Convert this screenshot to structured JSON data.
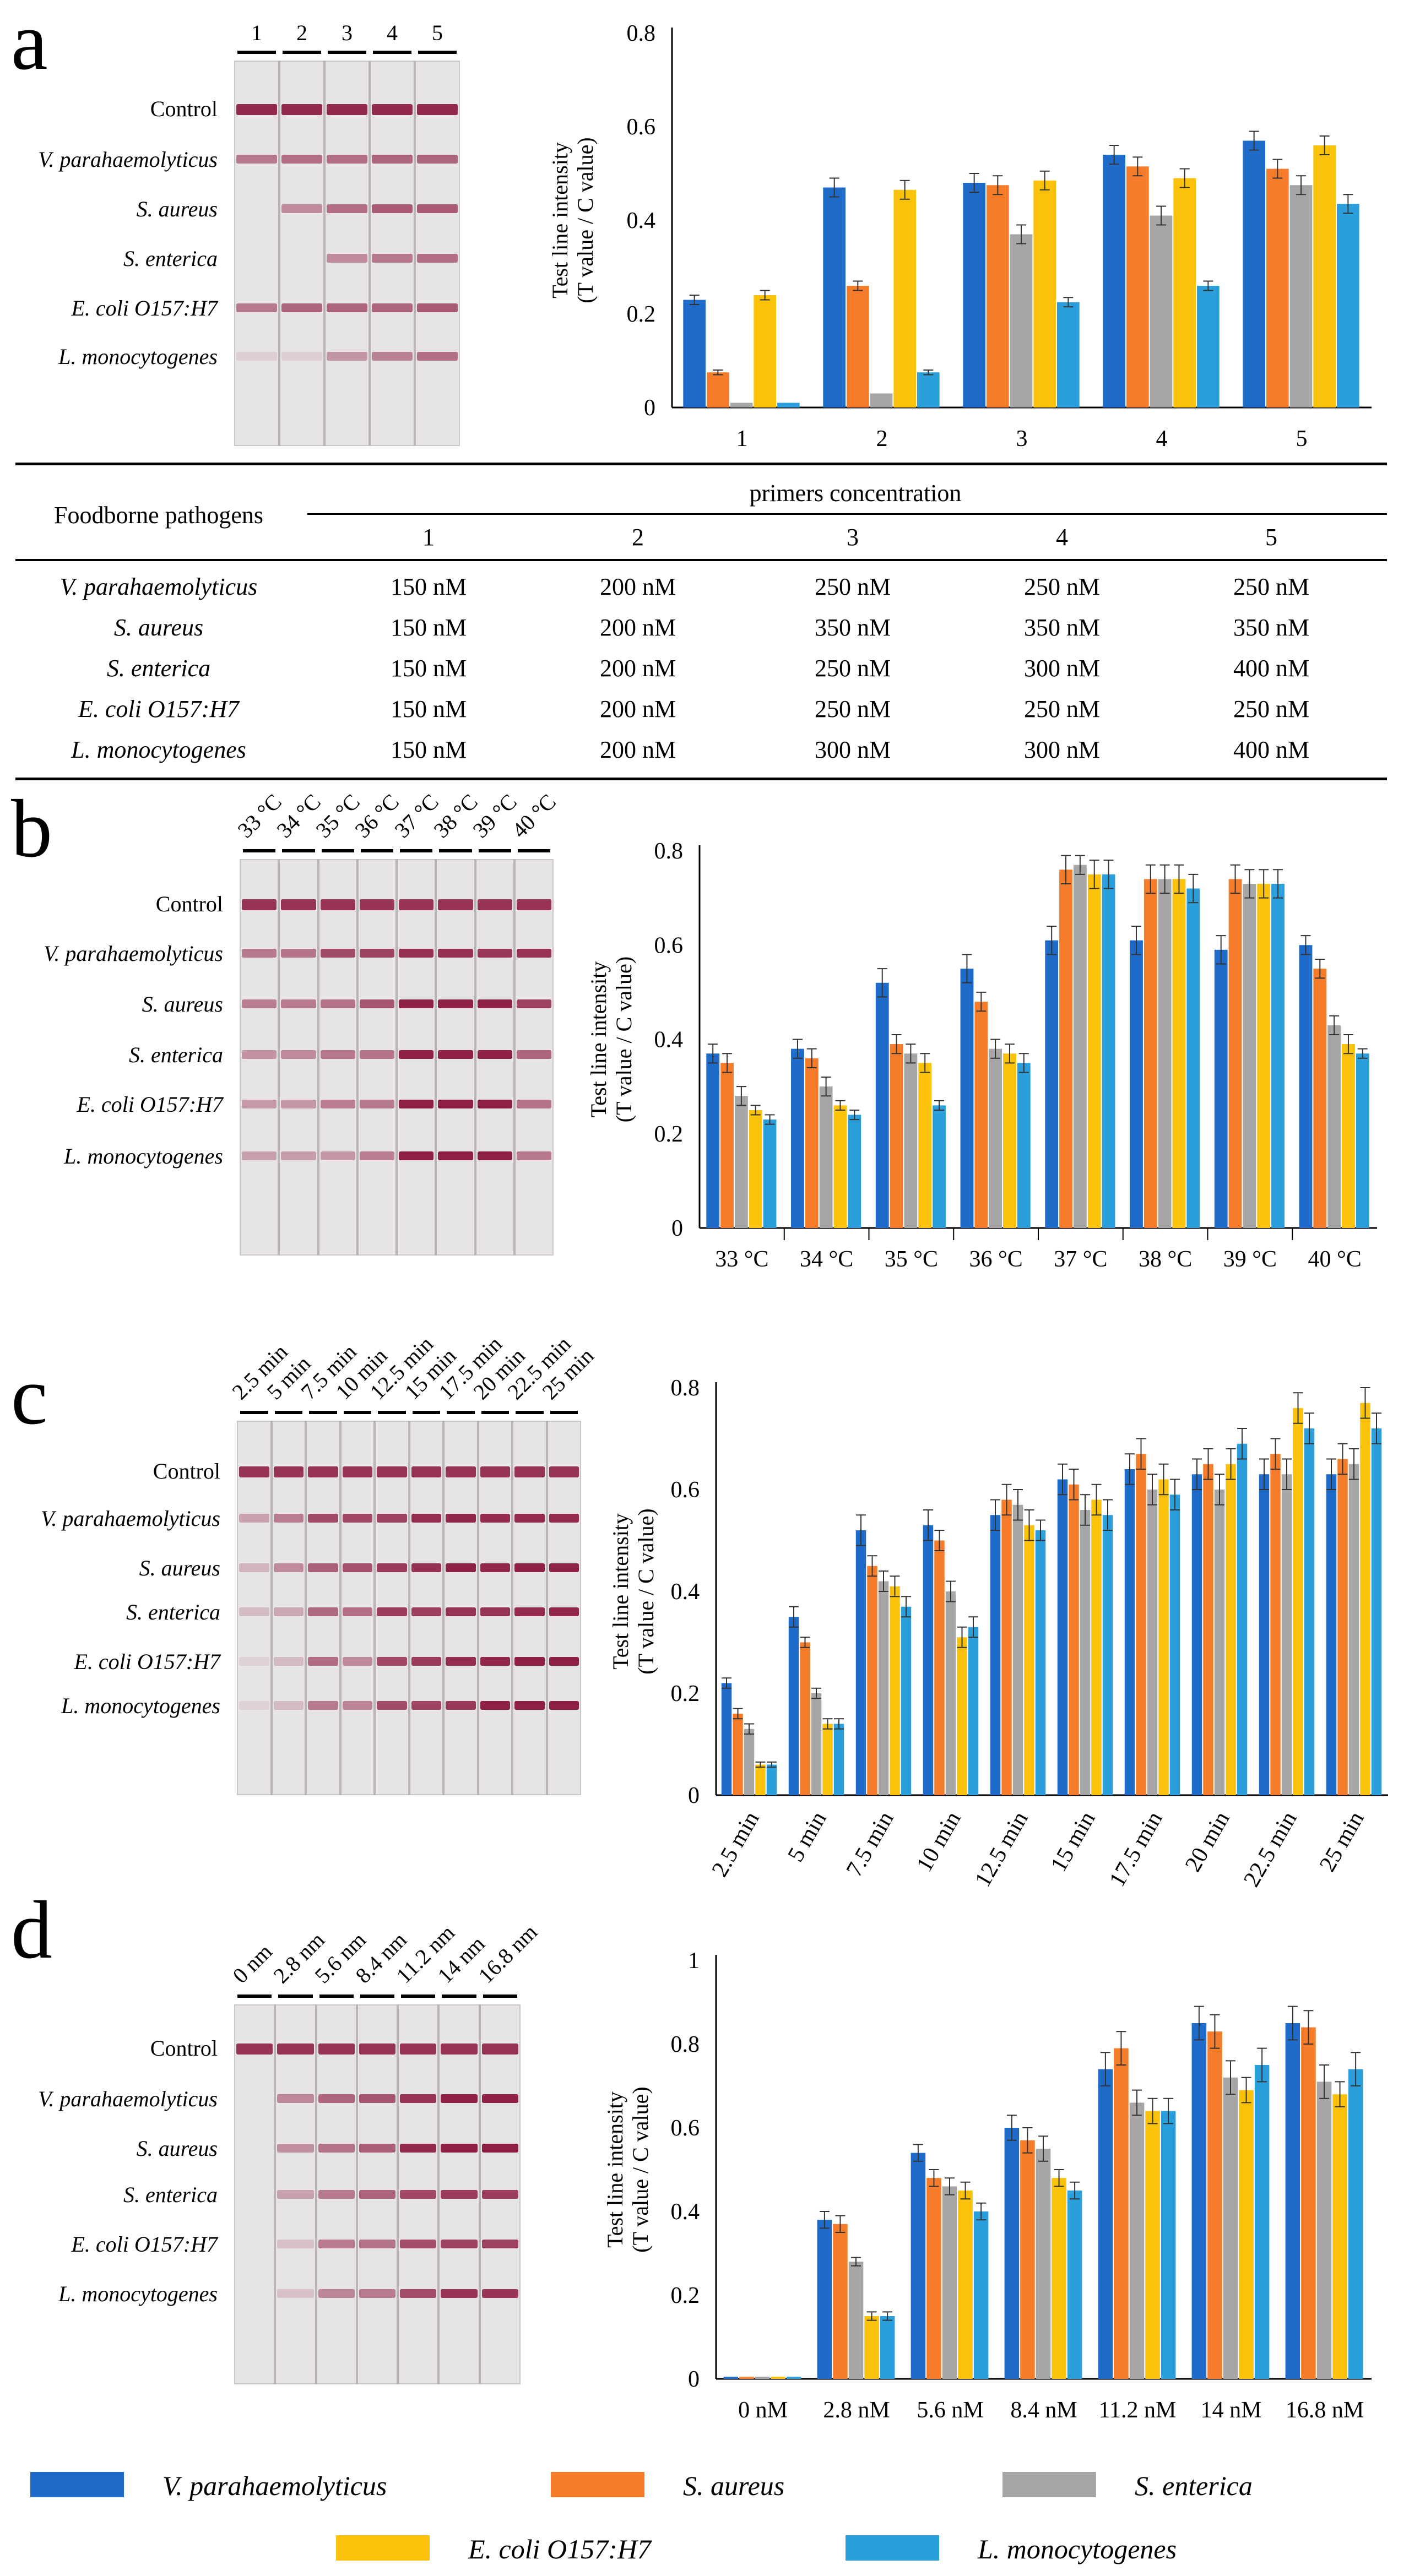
{
  "colors": {
    "series": [
      "#1f6bc9",
      "#f47c2a",
      "#a6a6a6",
      "#fbc20c",
      "#2a9fdc"
    ],
    "strip_bg": "#e7e4e6",
    "band": "#8e1f45"
  },
  "legend": [
    "V. parahaemolyticus",
    "S. aureus",
    "S. enterica",
    "E. coli O157:H7",
    "L. monocytogenes"
  ],
  "strip_rows": [
    "Control",
    "V. parahaemolyticus",
    "S. aureus",
    "S. enterica",
    "E. coli O157:H7",
    "L. monocytogenes"
  ],
  "panels": {
    "a": {
      "letter": "a",
      "strip_rows_a": [
        "Control",
        "V. parahaemolyticus",
        "S. aureus",
        "S. enterica",
        "E. coli O157:H7",
        "L. monocytogenes"
      ],
      "lanes": [
        "1",
        "2",
        "3",
        "4",
        "5"
      ],
      "table": {
        "row_header": "Foodborne pathogens",
        "col_header": "primers concentration",
        "cols": [
          "1",
          "2",
          "3",
          "4",
          "5"
        ],
        "rows": [
          {
            "name": "V. parahaemolyticus",
            "values": [
              "150 nM",
              "200 nM",
              "250 nM",
              "250 nM",
              "250 nM"
            ]
          },
          {
            "name": "S. aureus",
            "values": [
              "150 nM",
              "200 nM",
              "350 nM",
              "350 nM",
              "350 nM"
            ]
          },
          {
            "name": "S. enterica",
            "values": [
              "150 nM",
              "200 nM",
              "250 nM",
              "300 nM",
              "400 nM"
            ]
          },
          {
            "name": "E. coli O157:H7",
            "values": [
              "150 nM",
              "200 nM",
              "250 nM",
              "250 nM",
              "250 nM"
            ]
          },
          {
            "name": "L. monocytogenes",
            "values": [
              "150 nM",
              "200 nM",
              "300 nM",
              "300 nM",
              "400 nM"
            ]
          }
        ]
      }
    },
    "b": {
      "letter": "b",
      "lanes": [
        "33 °C",
        "34 °C",
        "35 °C",
        "36 °C",
        "37 °C",
        "38 °C",
        "39 °C",
        "40 °C"
      ]
    },
    "c": {
      "letter": "c",
      "lanes": [
        "2.5 min",
        "5 min",
        "7.5 min",
        "10 min",
        "12.5 min",
        "15 min",
        "17.5 min",
        "20 min",
        "22.5 min",
        "25 min"
      ]
    },
    "d": {
      "letter": "d",
      "lanes": [
        "0 nm",
        "2.8 nm",
        "5.6 nm",
        "8.4 nm",
        "11.2 nm",
        "14 nm",
        "16.8 nm"
      ]
    }
  },
  "chart_data": [
    {
      "type": "bar",
      "categories": [
        "1",
        "2",
        "3",
        "4",
        "5"
      ],
      "ylabel_line1": "Test line intensity",
      "ylabel_line2": "(T value / C value)",
      "ylim": [
        0,
        0.8
      ],
      "yticks": [
        "0",
        "0.2",
        "0.4",
        "0.6",
        "0.8"
      ],
      "series": [
        {
          "name": "V. parahaemolyticus",
          "values": [
            0.23,
            0.47,
            0.48,
            0.54,
            0.57
          ],
          "errors": [
            0.01,
            0.02,
            0.02,
            0.02,
            0.02
          ]
        },
        {
          "name": "S. aureus",
          "values": [
            0.075,
            0.26,
            0.475,
            0.515,
            0.51
          ],
          "errors": [
            0.005,
            0.01,
            0.02,
            0.02,
            0.02
          ]
        },
        {
          "name": "S. enterica",
          "values": [
            0.01,
            0.03,
            0.37,
            0.41,
            0.475
          ],
          "errors": [
            0.002,
            0.003,
            0.02,
            0.02,
            0.02
          ]
        },
        {
          "name": "E. coli O157:H7",
          "values": [
            0.24,
            0.465,
            0.485,
            0.49,
            0.56
          ],
          "errors": [
            0.01,
            0.02,
            0.02,
            0.02,
            0.02
          ]
        },
        {
          "name": "L. monocytogenes",
          "values": [
            0.01,
            0.075,
            0.225,
            0.26,
            0.435
          ],
          "errors": [
            0.002,
            0.005,
            0.01,
            0.01,
            0.02
          ]
        }
      ]
    },
    {
      "type": "bar",
      "categories": [
        "33 °C",
        "34 °C",
        "35 °C",
        "36 °C",
        "37 °C",
        "38 °C",
        "39 °C",
        "40 °C"
      ],
      "ylabel_line1": "Test line intensity",
      "ylabel_line2": "(T value / C value)",
      "ylim": [
        0,
        0.8
      ],
      "yticks": [
        "0",
        "0.2",
        "0.4",
        "0.6",
        "0.8"
      ],
      "series": [
        {
          "name": "V. parahaemolyticus",
          "values": [
            0.37,
            0.38,
            0.52,
            0.55,
            0.61,
            0.61,
            0.59,
            0.6
          ],
          "errors": [
            0.02,
            0.02,
            0.03,
            0.03,
            0.03,
            0.03,
            0.03,
            0.02
          ]
        },
        {
          "name": "S. aureus",
          "values": [
            0.35,
            0.36,
            0.39,
            0.48,
            0.76,
            0.74,
            0.74,
            0.55
          ],
          "errors": [
            0.02,
            0.02,
            0.02,
            0.02,
            0.03,
            0.03,
            0.03,
            0.02
          ]
        },
        {
          "name": "S. enterica",
          "values": [
            0.28,
            0.3,
            0.37,
            0.38,
            0.77,
            0.74,
            0.73,
            0.43
          ],
          "errors": [
            0.02,
            0.02,
            0.02,
            0.02,
            0.02,
            0.03,
            0.03,
            0.02
          ]
        },
        {
          "name": "E. coli O157:H7",
          "values": [
            0.25,
            0.26,
            0.35,
            0.37,
            0.75,
            0.74,
            0.73,
            0.39
          ],
          "errors": [
            0.01,
            0.01,
            0.02,
            0.02,
            0.03,
            0.03,
            0.03,
            0.02
          ]
        },
        {
          "name": "L. monocytogenes",
          "values": [
            0.23,
            0.24,
            0.26,
            0.35,
            0.75,
            0.72,
            0.73,
            0.37
          ],
          "errors": [
            0.01,
            0.01,
            0.01,
            0.02,
            0.03,
            0.03,
            0.03,
            0.01
          ]
        }
      ]
    },
    {
      "type": "bar",
      "categories": [
        "2.5 min",
        "5 min",
        "7.5 min",
        "10 min",
        "12.5 min",
        "15 min",
        "17.5 min",
        "20 min",
        "22.5 min",
        "25 min"
      ],
      "ylabel_line1": "Test line intensity",
      "ylabel_line2": "(T value / C value)",
      "ylim": [
        0,
        0.8
      ],
      "yticks": [
        "0",
        "0.2",
        "0.4",
        "0.6",
        "0.8"
      ],
      "series": [
        {
          "name": "V. parahaemolyticus",
          "values": [
            0.22,
            0.35,
            0.52,
            0.53,
            0.55,
            0.62,
            0.64,
            0.63,
            0.63,
            0.63
          ],
          "errors": [
            0.01,
            0.02,
            0.03,
            0.03,
            0.03,
            0.03,
            0.03,
            0.03,
            0.03,
            0.03
          ]
        },
        {
          "name": "S. aureus",
          "values": [
            0.16,
            0.3,
            0.45,
            0.5,
            0.58,
            0.61,
            0.67,
            0.65,
            0.67,
            0.66
          ],
          "errors": [
            0.01,
            0.01,
            0.02,
            0.02,
            0.03,
            0.03,
            0.03,
            0.03,
            0.03,
            0.03
          ]
        },
        {
          "name": "S. enterica",
          "values": [
            0.13,
            0.2,
            0.42,
            0.4,
            0.57,
            0.56,
            0.6,
            0.6,
            0.63,
            0.65
          ],
          "errors": [
            0.01,
            0.01,
            0.02,
            0.02,
            0.03,
            0.03,
            0.03,
            0.03,
            0.03,
            0.03
          ]
        },
        {
          "name": "E. coli O157:H7",
          "values": [
            0.06,
            0.14,
            0.41,
            0.31,
            0.53,
            0.58,
            0.62,
            0.65,
            0.76,
            0.77
          ],
          "errors": [
            0.005,
            0.01,
            0.02,
            0.02,
            0.03,
            0.03,
            0.03,
            0.03,
            0.03,
            0.03
          ]
        },
        {
          "name": "L. monocytogenes",
          "values": [
            0.06,
            0.14,
            0.37,
            0.33,
            0.52,
            0.55,
            0.59,
            0.69,
            0.72,
            0.72
          ],
          "errors": [
            0.005,
            0.01,
            0.02,
            0.02,
            0.02,
            0.03,
            0.03,
            0.03,
            0.03,
            0.03
          ]
        }
      ]
    },
    {
      "type": "bar",
      "categories": [
        "0 nM",
        "2.8 nM",
        "5.6 nM",
        "8.4 nM",
        "11.2 nM",
        "14 nM",
        "16.8 nM"
      ],
      "ylabel_line1": "Test line intensity",
      "ylabel_line2": "(T value / C value)",
      "ylim": [
        0,
        1
      ],
      "yticks": [
        "0",
        "0.2",
        "0.4",
        "0.6",
        "0.8",
        "1"
      ],
      "series": [
        {
          "name": "V. parahaemolyticus",
          "values": [
            0.005,
            0.38,
            0.54,
            0.6,
            0.74,
            0.85,
            0.85
          ],
          "errors": [
            0.001,
            0.02,
            0.02,
            0.03,
            0.04,
            0.04,
            0.04
          ]
        },
        {
          "name": "S. aureus",
          "values": [
            0.005,
            0.37,
            0.48,
            0.57,
            0.79,
            0.83,
            0.84
          ],
          "errors": [
            0.001,
            0.02,
            0.02,
            0.03,
            0.04,
            0.04,
            0.04
          ]
        },
        {
          "name": "S. enterica",
          "values": [
            0.005,
            0.28,
            0.46,
            0.55,
            0.66,
            0.72,
            0.71
          ],
          "errors": [
            0.001,
            0.01,
            0.02,
            0.03,
            0.03,
            0.04,
            0.04
          ]
        },
        {
          "name": "E. coli O157:H7",
          "values": [
            0.005,
            0.15,
            0.45,
            0.48,
            0.64,
            0.69,
            0.68
          ],
          "errors": [
            0.001,
            0.01,
            0.02,
            0.02,
            0.03,
            0.03,
            0.03
          ]
        },
        {
          "name": "L. monocytogenes",
          "values": [
            0.005,
            0.15,
            0.4,
            0.45,
            0.64,
            0.75,
            0.74
          ],
          "errors": [
            0.001,
            0.01,
            0.02,
            0.02,
            0.03,
            0.04,
            0.04
          ]
        }
      ]
    }
  ]
}
